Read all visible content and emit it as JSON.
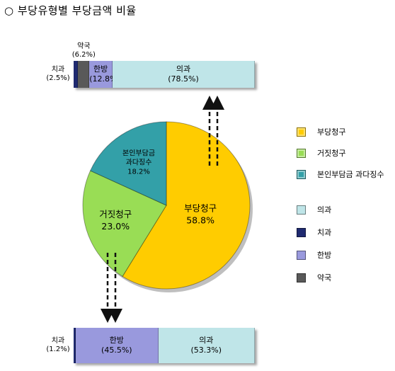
{
  "header": {
    "title": "○ 부당유형별 부당금액 비율"
  },
  "chart_data": [
    {
      "type": "pie",
      "categories": [
        "부당청구",
        "거짓청구",
        "본인부담금 과다징수"
      ],
      "slice_labels": [
        "부당청구",
        "거짓청구",
        "본인부담금\n과다징수"
      ],
      "values": [
        58.8,
        23.0,
        18.2
      ],
      "value_labels": [
        "58.8%",
        "23.0%",
        "18.2%"
      ],
      "colors": [
        "#FFCC00",
        "#99DD55",
        "#33A0A8"
      ]
    },
    {
      "type": "bar",
      "stacked": true,
      "categories": [
        "치과",
        "약국",
        "한방",
        "의과"
      ],
      "values": [
        2.5,
        6.2,
        12.8,
        78.5
      ],
      "value_labels": [
        "(2.5%)",
        "(6.2%)",
        "(12.8%)",
        "(78.5%)"
      ],
      "colors": [
        "#1F2A70",
        "#595959",
        "#9999DD",
        "#BFE5E8"
      ]
    },
    {
      "type": "bar",
      "stacked": true,
      "categories": [
        "치과",
        "한방",
        "의과"
      ],
      "values": [
        1.2,
        45.5,
        53.3
      ],
      "value_labels": [
        "(1.2%)",
        "(45.5%)",
        "(53.3%)"
      ],
      "colors": [
        "#1F2A70",
        "#9999DD",
        "#BFE5E8"
      ]
    }
  ],
  "legend": {
    "items": [
      {
        "label": "부당청구",
        "color": "#FFCC00"
      },
      {
        "label": "거짓청구",
        "color": "#99DD55"
      },
      {
        "label": "본인부담금 과다징수",
        "color": "#33A0A8"
      },
      {
        "label": "의과",
        "color": "#BFE5E8"
      },
      {
        "label": "치과",
        "color": "#1F2A70"
      },
      {
        "label": "한방",
        "color": "#9999DD"
      },
      {
        "label": "약국",
        "color": "#595959"
      }
    ]
  }
}
